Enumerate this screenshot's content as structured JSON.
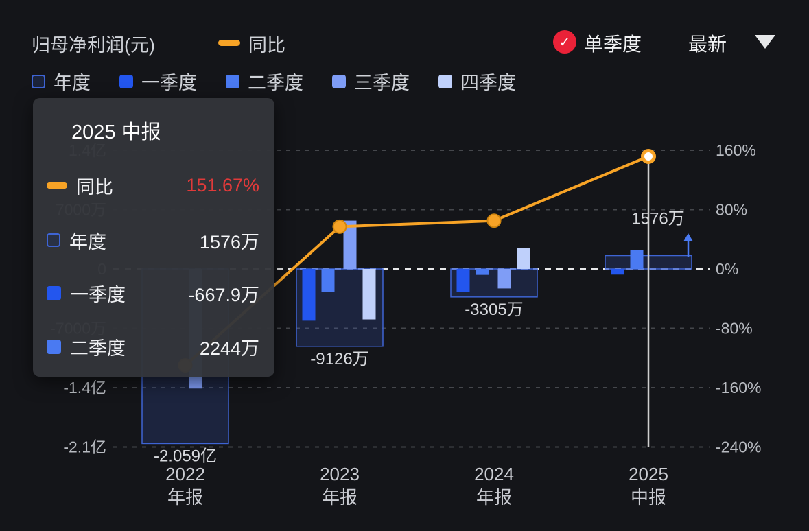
{
  "header": {
    "title": "归母净利润(元)",
    "line_legend_label": "同比",
    "single_quarter_label": "单季度",
    "dropdown_label": "最新",
    "checkbox_checked": true
  },
  "legend": {
    "items": [
      {
        "key": "annual",
        "label": "年度"
      },
      {
        "key": "q1",
        "label": "一季度"
      },
      {
        "key": "q2",
        "label": "二季度"
      },
      {
        "key": "q3",
        "label": "三季度"
      },
      {
        "key": "q4",
        "label": "四季度"
      }
    ]
  },
  "tooltip": {
    "title": "2025 中报",
    "rows": [
      {
        "swatch": "line-dash",
        "label": "同比",
        "value": "151.67%",
        "value_color": "red"
      },
      {
        "swatch": "annual",
        "label": "年度",
        "value": "1576万"
      },
      {
        "swatch": "q1",
        "label": "一季度",
        "value": "-667.9万"
      },
      {
        "swatch": "q2",
        "label": "二季度",
        "value": "2244万"
      }
    ]
  },
  "colors": {
    "background": "#141519",
    "accent_orange": "#f7a326",
    "point_ring": "#d1860f",
    "check_red": "#ea2238",
    "tooltip_value_red": "#e03a3a",
    "annual_fill": "rgba(62,100,212,0.20)",
    "annual_border": "#3e64d4",
    "q1": "#2356ee",
    "q2": "#4a7af2",
    "q3": "#7f9df6",
    "q4": "#bfd0fb",
    "grid": "#45474c",
    "zero_line": "#e8e8ea",
    "axis_text": "#b8bbc1",
    "data_label": "#d8dade",
    "x_label": "#caccd2",
    "crosshair": "#cfcfcf"
  },
  "chart_data": {
    "type": "bar",
    "subtype": "grouped bars with YoY line overlay",
    "title": "归母净利润(元)",
    "bar_value_unit": "万",
    "categories": [
      "2022 年报",
      "2023 年报",
      "2024 年报",
      "2025 中报"
    ],
    "x_labels": [
      [
        "2022",
        "年报"
      ],
      [
        "2023",
        "年报"
      ],
      [
        "2024",
        "年报"
      ],
      [
        "2025",
        "中报"
      ]
    ],
    "groups": [
      {
        "annual_wan": -20590,
        "annual_label": "-2.059亿",
        "quarters_wan": [
          null,
          null,
          -14100,
          null
        ]
      },
      {
        "annual_wan": -9126,
        "annual_label": "-9126万",
        "quarters_wan": [
          -6100,
          -2750,
          5700,
          -5950
        ]
      },
      {
        "annual_wan": -3305,
        "annual_label": "-3305万",
        "quarters_wan": [
          -2750,
          -700,
          -2300,
          2450
        ]
      },
      {
        "annual_wan": 1576,
        "annual_label": "1576万",
        "quarters_wan": [
          -667.9,
          2244,
          null,
          null
        ],
        "highlighted": true,
        "trend_arrow": true
      }
    ],
    "line_series": {
      "name": "同比",
      "unit": "%",
      "values_pct": [
        -130,
        57,
        65,
        151.67
      ],
      "note": "2022 point hidden behind tooltip, 2023/2024 estimated from pixels, 2025 = 151.67% from tooltip"
    },
    "y_right_axis": {
      "labels": [
        "160%",
        "80%",
        "0%",
        "-80%",
        "-160%",
        "-240%"
      ],
      "values_pct": [
        160,
        80,
        0,
        -80,
        -160,
        -240
      ]
    },
    "y_left_axis": {
      "labels": [
        "1.4亿",
        "7000万",
        "0",
        "-7000万",
        "-1.4亿",
        "-2.1亿"
      ],
      "values_wan": [
        14000,
        7000,
        0,
        -7000,
        -14000,
        -21000
      ]
    },
    "grid": "horizontal dashed lines, zero line emphasized white",
    "legend_position": "top-left, two rows"
  }
}
